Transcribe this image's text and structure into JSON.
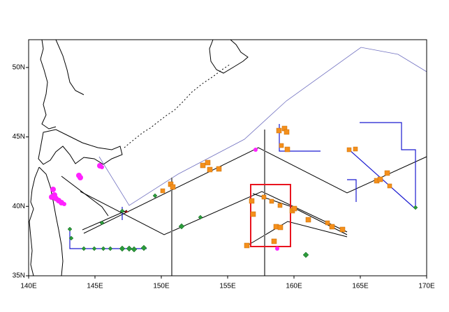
{
  "map": {
    "xlim": [
      140,
      170
    ],
    "ylim": [
      35,
      52
    ],
    "xticks": [
      {
        "value": 140,
        "label": "140E"
      },
      {
        "value": 145,
        "label": "145E"
      },
      {
        "value": 150,
        "label": "150E"
      },
      {
        "value": 155,
        "label": "155E"
      },
      {
        "value": 160,
        "label": "160E"
      },
      {
        "value": 165,
        "label": "165E"
      },
      {
        "value": 170,
        "label": "170E"
      }
    ],
    "yticks": [
      {
        "value": 35,
        "label": "35N"
      },
      {
        "value": 40,
        "label": "40N"
      },
      {
        "value": 45,
        "label": "45N"
      },
      {
        "value": 50,
        "label": "50N"
      }
    ]
  }
}
